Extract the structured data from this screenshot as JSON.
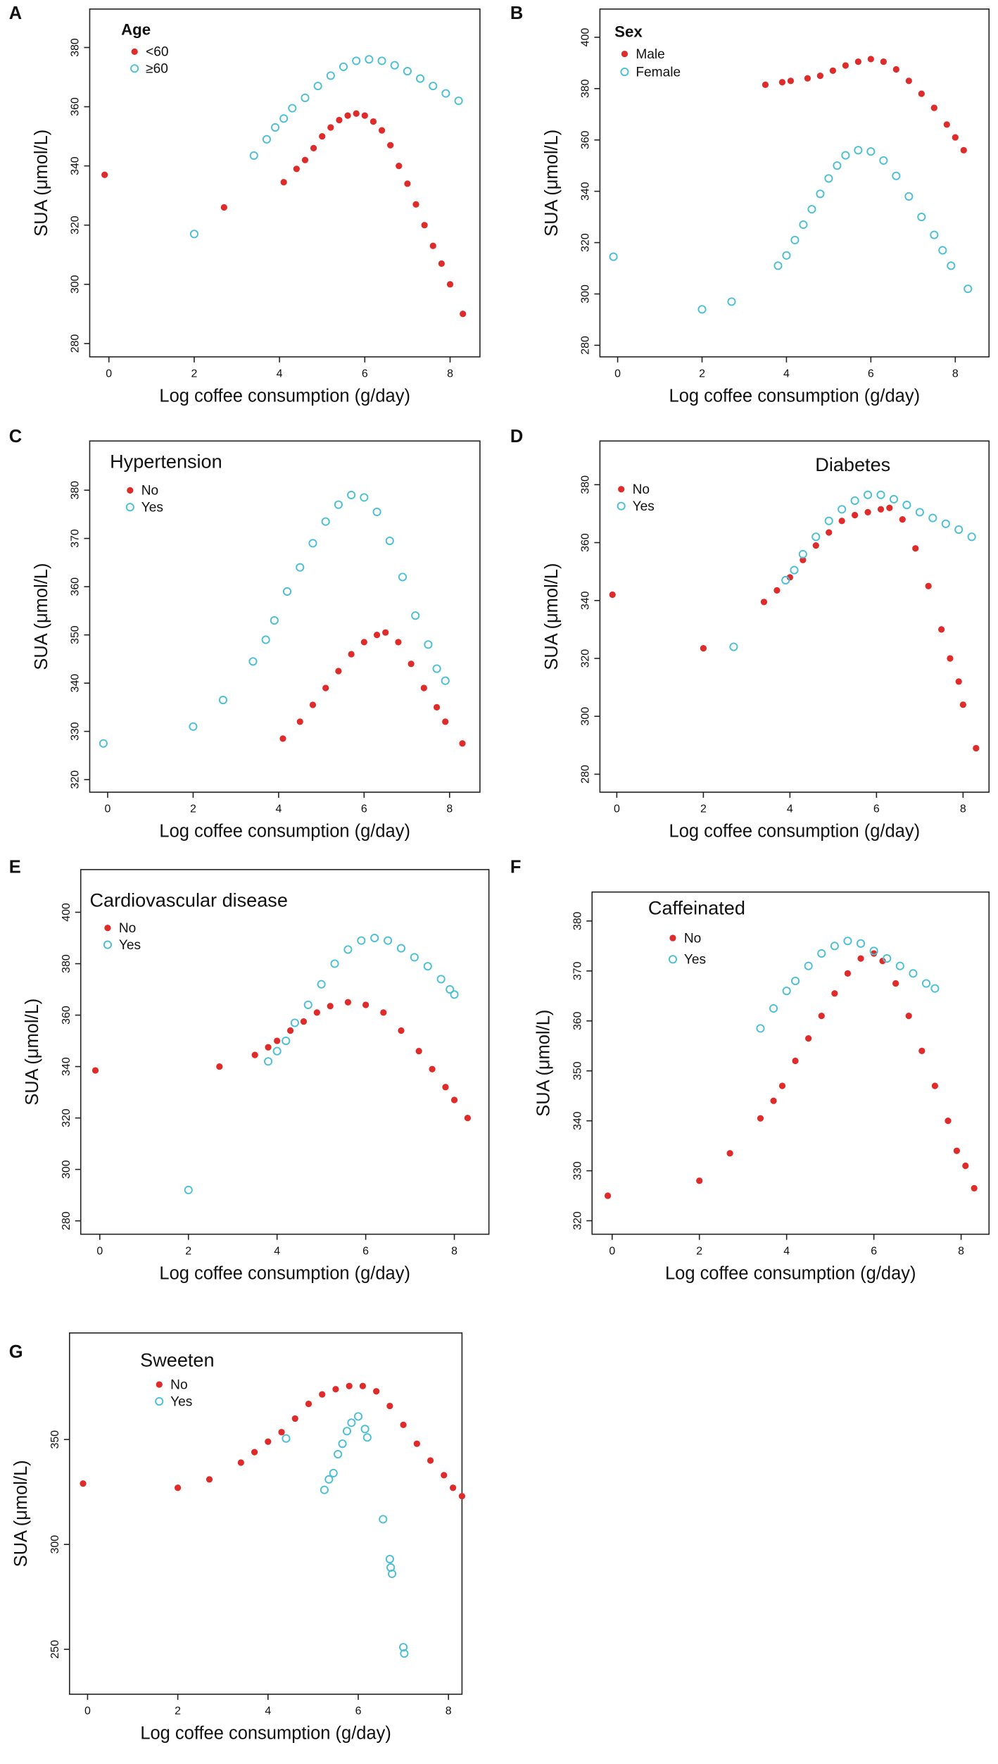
{
  "chart_data": [
    {
      "type": "scatter",
      "panel": "A",
      "legend_title": "Age",
      "xlabel": "Log coffee consumption (g/day)",
      "ylabel": "SUA (μmol/L)",
      "xlim": [
        -0.45,
        8.7
      ],
      "ylim": [
        275.5,
        393
      ],
      "xticks": [
        0,
        2,
        4,
        6,
        8
      ],
      "yticks": [
        280,
        300,
        320,
        340,
        360,
        380
      ],
      "series": [
        {
          "name": "<60",
          "color": "#e02b2b",
          "marker": "filled",
          "x": [
            -0.1,
            2.7,
            4.1,
            4.4,
            4.6,
            4.8,
            5.0,
            5.2,
            5.4,
            5.6,
            5.8,
            6.0,
            6.2,
            6.4,
            6.6,
            6.8,
            7.0,
            7.2,
            7.4,
            7.6,
            7.8,
            8.0,
            8.3
          ],
          "y": [
            337,
            326,
            334.5,
            339,
            342,
            346,
            350,
            353,
            355.5,
            357,
            357.7,
            357,
            355,
            352,
            347,
            340,
            334,
            327,
            320,
            313,
            307,
            300,
            290
          ]
        },
        {
          "name": "≥60",
          "color": "#4bbfd6",
          "marker": "open",
          "x": [
            2.0,
            3.4,
            3.7,
            3.9,
            4.1,
            4.3,
            4.6,
            4.9,
            5.2,
            5.5,
            5.8,
            6.1,
            6.4,
            6.7,
            7.0,
            7.3,
            7.6,
            7.9,
            8.2
          ],
          "y": [
            317,
            343.5,
            349,
            353,
            356,
            359.5,
            363,
            367,
            370.5,
            373.5,
            375.5,
            376,
            375.5,
            374,
            372,
            369.5,
            367,
            364.5,
            362
          ]
        }
      ]
    },
    {
      "type": "scatter",
      "panel": "B",
      "legend_title": "Sex",
      "xlabel": "Log coffee consumption (g/day)",
      "ylabel": "SUA (μmol/L)",
      "xlim": [
        -0.42,
        8.8
      ],
      "ylim": [
        275.5,
        411
      ],
      "xticks": [
        0,
        2,
        4,
        6,
        8
      ],
      "yticks": [
        280,
        300,
        320,
        340,
        360,
        380,
        400
      ],
      "series": [
        {
          "name": "Male",
          "color": "#e02b2b",
          "marker": "filled",
          "x": [
            3.5,
            3.9,
            4.1,
            4.5,
            4.8,
            5.1,
            5.4,
            5.7,
            6.0,
            6.3,
            6.6,
            6.9,
            7.2,
            7.5,
            7.8,
            8.0,
            8.2
          ],
          "y": [
            381.5,
            382.5,
            383,
            384,
            385,
            387,
            389,
            390.5,
            391.5,
            390.5,
            387.5,
            383,
            378,
            372.5,
            366,
            361,
            356
          ]
        },
        {
          "name": "Female",
          "color": "#4bbfd6",
          "marker": "open",
          "x": [
            -0.1,
            2.0,
            2.7,
            3.8,
            4.0,
            4.2,
            4.4,
            4.6,
            4.8,
            5.0,
            5.2,
            5.4,
            5.7,
            6.0,
            6.3,
            6.6,
            6.9,
            7.2,
            7.5,
            7.7,
            7.9,
            8.3
          ],
          "y": [
            314.5,
            294,
            297,
            311,
            315,
            321,
            327,
            333,
            339,
            345,
            350,
            354,
            356,
            355.5,
            352,
            346,
            338,
            330,
            323,
            317,
            311,
            302
          ]
        }
      ]
    },
    {
      "type": "scatter",
      "panel": "C",
      "legend_title": "Hypertension",
      "xlabel": "Log coffee consumption (g/day)",
      "ylabel": "SUA (μmol/L)",
      "xlim": [
        -0.42,
        8.71
      ],
      "ylim": [
        317.4,
        390.2
      ],
      "xticks": [
        0,
        2,
        4,
        6,
        8
      ],
      "yticks": [
        320,
        330,
        340,
        350,
        360,
        370,
        380
      ],
      "series": [
        {
          "name": "No",
          "color": "#e02b2b",
          "marker": "filled",
          "x": [
            4.1,
            4.5,
            4.8,
            5.1,
            5.4,
            5.7,
            6.0,
            6.3,
            6.5,
            6.8,
            7.1,
            7.4,
            7.7,
            7.9,
            8.3
          ],
          "y": [
            328.5,
            332,
            335.5,
            339,
            342.5,
            346,
            348.5,
            350,
            350.5,
            348.5,
            344,
            339,
            335,
            332,
            327.5
          ]
        },
        {
          "name": "Yes",
          "color": "#4bbfd6",
          "marker": "open",
          "x": [
            -0.1,
            2.0,
            2.7,
            3.4,
            3.7,
            3.9,
            4.2,
            4.5,
            4.8,
            5.1,
            5.4,
            5.7,
            6.0,
            6.3,
            6.6,
            6.9,
            7.2,
            7.5,
            7.7,
            7.9
          ],
          "y": [
            327.5,
            331,
            336.5,
            344.5,
            349,
            353,
            359,
            364,
            369,
            373.5,
            377,
            379,
            378.5,
            375.5,
            369.5,
            362,
            354,
            348,
            343,
            340.5
          ]
        }
      ]
    },
    {
      "type": "scatter",
      "panel": "D",
      "legend_title": "Diabetes",
      "xlabel": "Log coffee consumption (g/day)",
      "ylabel": "SUA (μmol/L)",
      "xlim": [
        -0.39,
        8.6
      ],
      "ylim": [
        273.8,
        395.1
      ],
      "xticks": [
        0,
        2,
        4,
        6,
        8
      ],
      "yticks": [
        280,
        300,
        320,
        340,
        360,
        380
      ],
      "series": [
        {
          "name": "No",
          "color": "#e02b2b",
          "marker": "filled",
          "x": [
            -0.1,
            2.0,
            3.4,
            3.7,
            4.0,
            4.3,
            4.6,
            4.9,
            5.2,
            5.5,
            5.8,
            6.1,
            6.3,
            6.6,
            6.9,
            7.2,
            7.5,
            7.7,
            7.9,
            8.0,
            8.3
          ],
          "y": [
            342,
            323.5,
            339.5,
            343.5,
            348,
            354,
            359,
            363.5,
            367.5,
            369.5,
            370.5,
            371.5,
            372,
            368,
            358,
            345,
            330,
            320,
            312,
            304,
            289
          ]
        },
        {
          "name": "Yes",
          "color": "#4bbfd6",
          "marker": "open",
          "x": [
            2.7,
            3.9,
            4.1,
            4.3,
            4.6,
            4.9,
            5.2,
            5.5,
            5.8,
            6.1,
            6.4,
            6.7,
            7.0,
            7.3,
            7.6,
            7.9,
            8.2
          ],
          "y": [
            324,
            347,
            350.5,
            356,
            362,
            367.5,
            371.5,
            374.5,
            376.5,
            376.5,
            375,
            373,
            370.5,
            368.5,
            366.5,
            364.5,
            362
          ]
        }
      ]
    },
    {
      "type": "scatter",
      "panel": "E",
      "legend_title": "Cardiovascular disease",
      "xlabel": "Log coffee consumption (g/day)",
      "ylabel": "SUA (μmol/L)",
      "xlim": [
        -0.43,
        8.78
      ],
      "ylim": [
        274.8,
        416.6
      ],
      "xticks": [
        0,
        2,
        4,
        6,
        8
      ],
      "yticks": [
        280,
        300,
        320,
        340,
        360,
        380,
        400
      ],
      "series": [
        {
          "name": "No",
          "color": "#e02b2b",
          "marker": "filled",
          "x": [
            -0.1,
            2.7,
            3.5,
            3.8,
            4.0,
            4.3,
            4.6,
            4.9,
            5.2,
            5.6,
            6.0,
            6.4,
            6.8,
            7.2,
            7.5,
            7.8,
            8.0,
            8.3
          ],
          "y": [
            338.5,
            340,
            344.5,
            347.5,
            350,
            354,
            357.5,
            361,
            363.5,
            365,
            364,
            361,
            354,
            346,
            339,
            332,
            327,
            320
          ]
        },
        {
          "name": "Yes",
          "color": "#4bbfd6",
          "marker": "open",
          "x": [
            2.0,
            3.8,
            4.0,
            4.2,
            4.4,
            4.7,
            5.0,
            5.3,
            5.6,
            5.9,
            6.2,
            6.5,
            6.8,
            7.1,
            7.4,
            7.7,
            7.9,
            8.0
          ],
          "y": [
            292,
            342,
            346,
            350,
            357,
            364,
            372,
            380,
            385.5,
            389,
            390,
            389,
            386,
            382.5,
            379,
            374,
            370,
            368
          ]
        }
      ]
    },
    {
      "type": "scatter",
      "panel": "F",
      "legend_title": "Caffeinated",
      "xlabel": "Log coffee consumption (g/day)",
      "ylabel": "SUA (μmol/L)",
      "xlim": [
        -0.46,
        8.64
      ],
      "ylim": [
        317.3,
        385.8
      ],
      "xticks": [
        0,
        2,
        4,
        6,
        8
      ],
      "yticks": [
        320,
        330,
        340,
        350,
        360,
        370,
        380
      ],
      "series": [
        {
          "name": "No",
          "color": "#e02b2b",
          "marker": "filled",
          "x": [
            -0.1,
            2.0,
            2.7,
            3.4,
            3.7,
            3.9,
            4.2,
            4.5,
            4.8,
            5.1,
            5.4,
            5.7,
            6.0,
            6.2,
            6.5,
            6.8,
            7.1,
            7.4,
            7.7,
            7.9,
            8.1,
            8.3
          ],
          "y": [
            325,
            328,
            333.5,
            340.5,
            344,
            347,
            352,
            356.5,
            361,
            365.5,
            369.5,
            372.5,
            373.5,
            372,
            367.5,
            361,
            354,
            347,
            340,
            334,
            331,
            326.5
          ]
        },
        {
          "name": "Yes",
          "color": "#4bbfd6",
          "marker": "open",
          "x": [
            3.4,
            3.7,
            4.0,
            4.2,
            4.5,
            4.8,
            5.1,
            5.4,
            5.7,
            6.0,
            6.3,
            6.6,
            6.9,
            7.2,
            7.4
          ],
          "y": [
            358.5,
            362.5,
            366,
            368,
            371,
            373.5,
            375,
            376,
            375.5,
            374,
            372.5,
            371,
            369.5,
            367.5,
            366.5
          ]
        }
      ]
    },
    {
      "type": "scatter",
      "panel": "G",
      "legend_title": "Sweeten",
      "xlabel": "Log coffee consumption (g/day)",
      "ylabel": "SUA (μmol/L)",
      "xlim": [
        -0.4,
        8.3
      ],
      "ylim": [
        228.6,
        400.8
      ],
      "xticks": [
        0,
        2,
        4,
        6,
        8
      ],
      "yticks": [
        250,
        300,
        350
      ],
      "series": [
        {
          "name": "No",
          "color": "#e02b2b",
          "marker": "filled",
          "x": [
            -0.1,
            2.0,
            2.7,
            3.4,
            3.7,
            4.0,
            4.3,
            4.6,
            4.9,
            5.2,
            5.5,
            5.8,
            6.1,
            6.4,
            6.7,
            7.0,
            7.3,
            7.6,
            7.9,
            8.1,
            8.3
          ],
          "y": [
            329,
            327,
            331,
            339,
            344,
            349,
            353.5,
            360,
            367,
            371.5,
            374,
            375.5,
            375.5,
            373,
            366,
            357,
            348,
            340,
            333,
            327,
            323
          ]
        },
        {
          "name": "Yes",
          "color": "#4bbfd6",
          "marker": "open",
          "x": [
            4.4,
            5.25,
            5.35,
            5.45,
            5.55,
            5.65,
            5.75,
            5.85,
            6.0,
            6.15,
            6.2,
            6.55,
            6.7,
            6.72,
            6.75,
            7.0,
            7.02
          ],
          "y": [
            350.5,
            326,
            331,
            334,
            343,
            348,
            354,
            358,
            361,
            355,
            351,
            312,
            293,
            289,
            286,
            251,
            248
          ]
        }
      ]
    }
  ]
}
